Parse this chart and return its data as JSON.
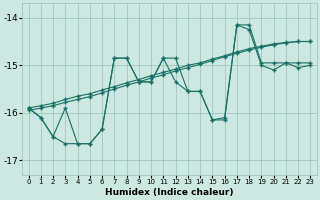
{
  "xlabel": "Humidex (Indice chaleur)",
  "bg_color": "#cce8e0",
  "grid_color": "#a0c8be",
  "line_color": "#1a7068",
  "xlim": [
    -0.5,
    23.5
  ],
  "ylim": [
    -17.3,
    -13.7
  ],
  "yticks": [
    -17,
    -16,
    -15,
    -14
  ],
  "xticks": [
    0,
    1,
    2,
    3,
    4,
    5,
    6,
    7,
    8,
    9,
    10,
    11,
    12,
    13,
    14,
    15,
    16,
    17,
    18,
    19,
    20,
    21,
    22,
    23
  ],
  "lines": [
    {
      "x": [
        0,
        1,
        2,
        3,
        4,
        5,
        6,
        7,
        8,
        9,
        10,
        11,
        12,
        13,
        14,
        15,
        16,
        17,
        18,
        19,
        20,
        21,
        22,
        23
      ],
      "y": [
        -15.9,
        -16.1,
        -16.5,
        -15.9,
        -16.65,
        -16.65,
        -16.35,
        -14.85,
        -14.85,
        -15.35,
        -15.35,
        -14.85,
        -15.35,
        -15.55,
        -15.55,
        -16.15,
        -16.1,
        -14.15,
        -14.25,
        -15.0,
        -15.1,
        -14.95,
        -15.05,
        -15.0
      ]
    },
    {
      "x": [
        0,
        1,
        2,
        3,
        4,
        5,
        6,
        7,
        8,
        9,
        10,
        11,
        12,
        13,
        14,
        15,
        16,
        17,
        18,
        19,
        20,
        21,
        22,
        23
      ],
      "y": [
        -15.9,
        -15.85,
        -15.8,
        -15.72,
        -15.65,
        -15.6,
        -15.52,
        -15.45,
        -15.37,
        -15.3,
        -15.22,
        -15.15,
        -15.08,
        -15.0,
        -14.95,
        -14.87,
        -14.8,
        -14.72,
        -14.65,
        -14.6,
        -14.55,
        -14.52,
        -14.5,
        -14.5
      ]
    },
    {
      "x": [
        0,
        1,
        2,
        3,
        4,
        5,
        6,
        7,
        8,
        9,
        10,
        11,
        12,
        13,
        14,
        15,
        16,
        17,
        18,
        19,
        20,
        21,
        22,
        23
      ],
      "y": [
        -15.95,
        -15.9,
        -15.85,
        -15.78,
        -15.72,
        -15.66,
        -15.58,
        -15.5,
        -15.42,
        -15.35,
        -15.27,
        -15.2,
        -15.12,
        -15.05,
        -14.98,
        -14.9,
        -14.82,
        -14.75,
        -14.68,
        -14.62,
        -14.57,
        -14.53,
        -14.5,
        -14.5
      ]
    },
    {
      "x": [
        0,
        1,
        2,
        3,
        4,
        5,
        6,
        7,
        8,
        9,
        10,
        11,
        12,
        13,
        14,
        15,
        16,
        17,
        18,
        19,
        20,
        21,
        22,
        23
      ],
      "y": [
        -15.9,
        -16.1,
        -16.5,
        -16.65,
        -16.65,
        -16.65,
        -16.35,
        -14.85,
        -14.85,
        -15.35,
        -15.35,
        -14.85,
        -14.85,
        -15.55,
        -15.55,
        -16.15,
        -16.15,
        -14.15,
        -14.15,
        -14.95,
        -14.95,
        -14.95,
        -14.95,
        -14.95
      ]
    }
  ]
}
